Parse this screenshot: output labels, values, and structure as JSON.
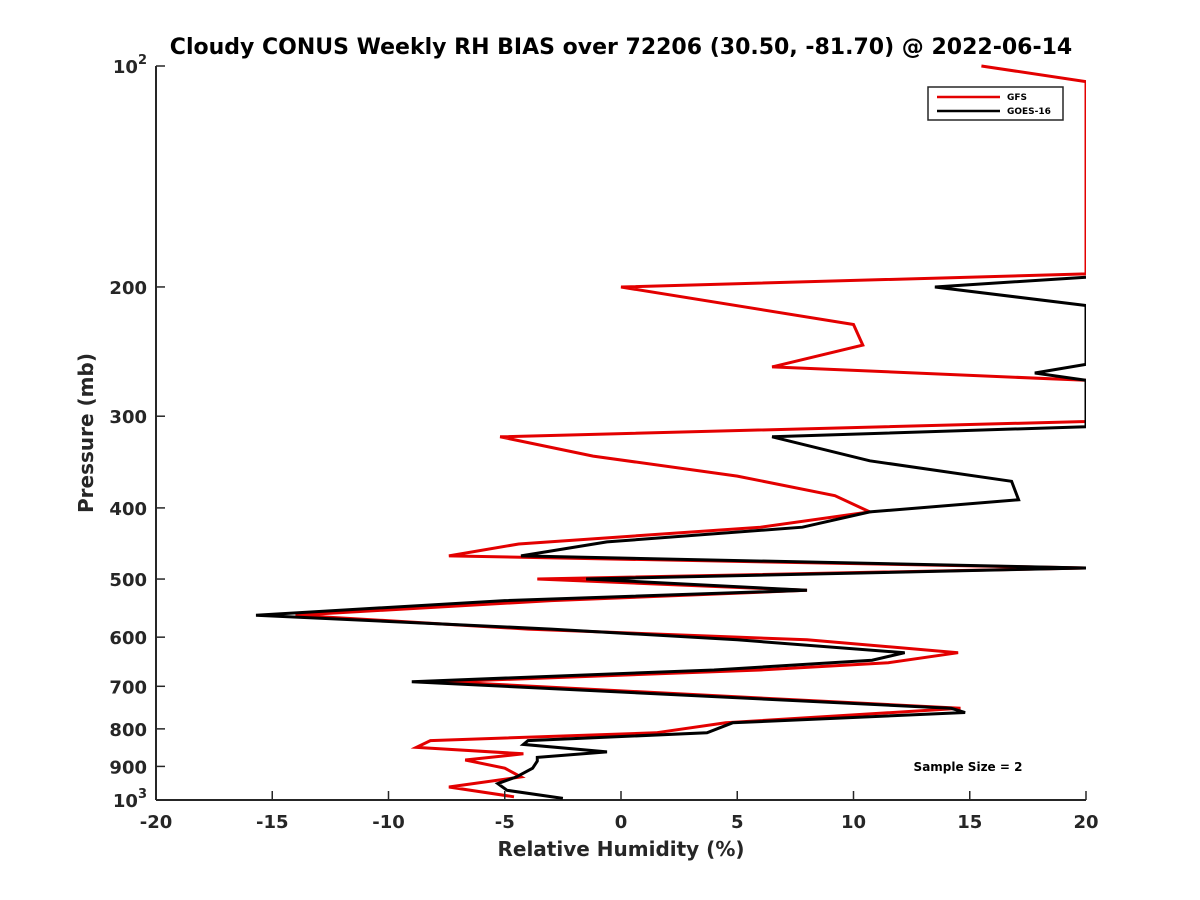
{
  "chart_data": {
    "type": "line",
    "title": "Cloudy CONUS Weekly RH BIAS over 72206 (30.50, -81.70) @ 2022-06-14",
    "xlabel": "Relative Humidity (%)",
    "ylabel": "Pressure (mb)",
    "xlim": [
      -20,
      20
    ],
    "ylim": [
      100,
      1000
    ],
    "yscale": "log",
    "y_reversed": true,
    "grid": false,
    "legend_position": "top-right",
    "x_ticks": [
      {
        "value": -20,
        "label": "-20"
      },
      {
        "value": -15,
        "label": "-15"
      },
      {
        "value": -10,
        "label": "-10"
      },
      {
        "value": -5,
        "label": "-5"
      },
      {
        "value": 0,
        "label": "0"
      },
      {
        "value": 5,
        "label": "5"
      },
      {
        "value": 10,
        "label": "10"
      },
      {
        "value": 15,
        "label": "15"
      },
      {
        "value": 20,
        "label": "20"
      }
    ],
    "y_ticks": [
      {
        "value": 100,
        "base": "10",
        "exp": "2"
      },
      {
        "value": 200,
        "label": "200"
      },
      {
        "value": 300,
        "label": "300"
      },
      {
        "value": 400,
        "label": "400"
      },
      {
        "value": 500,
        "label": "500"
      },
      {
        "value": 600,
        "label": "600"
      },
      {
        "value": 700,
        "label": "700"
      },
      {
        "value": 800,
        "label": "800"
      },
      {
        "value": 900,
        "label": "900"
      },
      {
        "value": 1000,
        "base": "10",
        "exp": "3"
      }
    ],
    "series": [
      {
        "name": "GFS",
        "color": "#e30000",
        "points": [
          [
            15.5,
            100
          ],
          [
            20,
            105
          ],
          [
            20,
            192
          ],
          [
            0,
            200
          ],
          [
            10,
            225
          ],
          [
            10.4,
            240
          ],
          [
            6.5,
            257
          ],
          [
            20,
            268
          ],
          [
            20,
            305
          ],
          [
            -5.2,
            320
          ],
          [
            -1.2,
            340
          ],
          [
            5,
            362
          ],
          [
            9.2,
            385
          ],
          [
            10.7,
            405
          ],
          [
            6,
            425
          ],
          [
            -4.4,
            448
          ],
          [
            -7.4,
            465
          ],
          [
            20,
            483
          ],
          [
            -3.6,
            500
          ],
          [
            8,
            518
          ],
          [
            -3,
            535
          ],
          [
            -14,
            560
          ],
          [
            -4,
            585
          ],
          [
            8,
            605
          ],
          [
            14.5,
            630
          ],
          [
            11.5,
            650
          ],
          [
            6,
            665
          ],
          [
            -7.6,
            690
          ],
          [
            14.6,
            750
          ],
          [
            4.5,
            785
          ],
          [
            1.5,
            810
          ],
          [
            -8.2,
            830
          ],
          [
            -8.8,
            848
          ],
          [
            -4.2,
            865
          ],
          [
            -6.7,
            882
          ],
          [
            -5,
            905
          ],
          [
            -4.3,
            930
          ],
          [
            -7.4,
            960
          ],
          [
            -4.6,
            990
          ]
        ]
      },
      {
        "name": "GOES-16",
        "color": "#000000",
        "points": [
          [
            20,
            194
          ],
          [
            13.5,
            200
          ],
          [
            20,
            212
          ],
          [
            20,
            255
          ],
          [
            17.8,
            262
          ],
          [
            20,
            268
          ],
          [
            20,
            310
          ],
          [
            6.5,
            320
          ],
          [
            10.7,
            345
          ],
          [
            16.8,
            368
          ],
          [
            17.1,
            390
          ],
          [
            10.7,
            405
          ],
          [
            7.8,
            425
          ],
          [
            -0.6,
            445
          ],
          [
            -4.3,
            465
          ],
          [
            20,
            483
          ],
          [
            -1.5,
            500
          ],
          [
            8,
            518
          ],
          [
            -5,
            535
          ],
          [
            -15.7,
            560
          ],
          [
            -3,
            585
          ],
          [
            5,
            605
          ],
          [
            12.2,
            630
          ],
          [
            10.8,
            645
          ],
          [
            4,
            665
          ],
          [
            -9,
            690
          ],
          [
            14.2,
            750
          ],
          [
            14.8,
            760
          ],
          [
            4.8,
            785
          ],
          [
            3.7,
            810
          ],
          [
            -4,
            830
          ],
          [
            -4.2,
            840
          ],
          [
            -0.6,
            860
          ],
          [
            -3.6,
            875
          ],
          [
            -3.6,
            885
          ],
          [
            -3.8,
            905
          ],
          [
            -4.5,
            930
          ],
          [
            -5.3,
            950
          ],
          [
            -4.9,
            970
          ],
          [
            -2.5,
            995
          ]
        ]
      }
    ],
    "annotations": [
      {
        "text": "Sample Size = 2"
      }
    ]
  }
}
